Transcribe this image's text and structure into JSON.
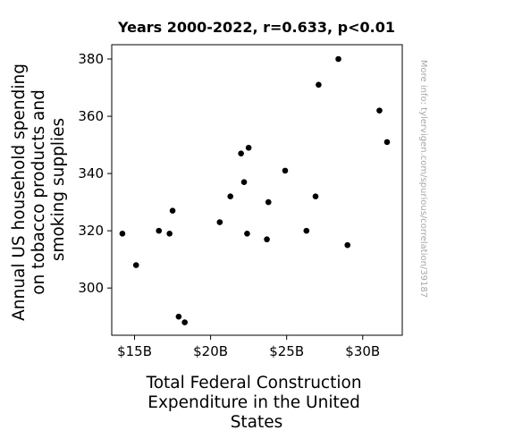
{
  "chart_data": {
    "type": "scatter",
    "title": "Years 2000-2022, r=0.633, p<0.01",
    "xlabel": [
      "Total Federal Construction",
      "Expenditure in the United",
      "States"
    ],
    "ylabel": [
      "Annual US household spending",
      "on tobacco products and",
      "smoking supplies"
    ],
    "xlim": [
      13.5,
      32.6
    ],
    "ylim": [
      283.5,
      385
    ],
    "x_ticks": [
      {
        "value": 15,
        "label": "$15B"
      },
      {
        "value": 20,
        "label": "$20B"
      },
      {
        "value": 25,
        "label": "$25B"
      },
      {
        "value": 30,
        "label": "$30B"
      }
    ],
    "y_ticks": [
      {
        "value": 300,
        "label": "300"
      },
      {
        "value": 320,
        "label": "320"
      },
      {
        "value": 340,
        "label": "340"
      },
      {
        "value": 360,
        "label": "360"
      },
      {
        "value": 380,
        "label": "380"
      }
    ],
    "grid": false,
    "marker_color": "#000000",
    "points": [
      {
        "x": 14.2,
        "y": 319
      },
      {
        "x": 15.1,
        "y": 308
      },
      {
        "x": 16.6,
        "y": 320
      },
      {
        "x": 17.3,
        "y": 319
      },
      {
        "x": 17.5,
        "y": 327
      },
      {
        "x": 17.9,
        "y": 290
      },
      {
        "x": 18.3,
        "y": 288
      },
      {
        "x": 20.6,
        "y": 323
      },
      {
        "x": 21.3,
        "y": 332
      },
      {
        "x": 22.0,
        "y": 347
      },
      {
        "x": 22.2,
        "y": 337
      },
      {
        "x": 22.4,
        "y": 319
      },
      {
        "x": 22.5,
        "y": 349
      },
      {
        "x": 23.7,
        "y": 317
      },
      {
        "x": 23.8,
        "y": 330
      },
      {
        "x": 24.9,
        "y": 341
      },
      {
        "x": 26.3,
        "y": 320
      },
      {
        "x": 26.9,
        "y": 332
      },
      {
        "x": 27.1,
        "y": 371
      },
      {
        "x": 28.4,
        "y": 380
      },
      {
        "x": 29.0,
        "y": 315
      },
      {
        "x": 31.1,
        "y": 362
      },
      {
        "x": 31.6,
        "y": 351
      }
    ]
  },
  "watermark": "More info: tylervigen.com/spurious/correlation/39187"
}
